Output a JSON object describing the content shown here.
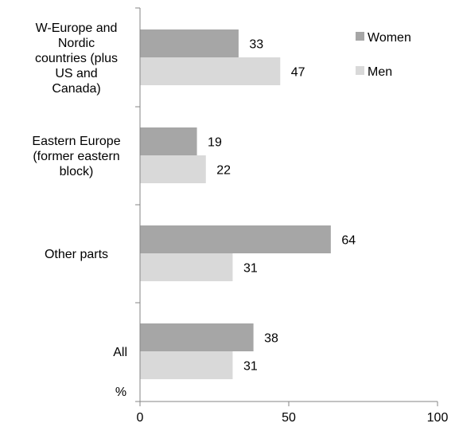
{
  "chart_data": {
    "type": "bar",
    "orientation": "horizontal",
    "categories": [
      [
        "W-Europe and",
        "Nordic",
        "countries (plus",
        "US and",
        "Canada)"
      ],
      [
        "Eastern Europe",
        "(former eastern",
        "block)"
      ],
      [
        "Other parts"
      ],
      [
        "All"
      ]
    ],
    "series": [
      {
        "name": "Women",
        "values": [
          33,
          19,
          64,
          38
        ],
        "color": "#a6a6a6"
      },
      {
        "name": "Men",
        "values": [
          47,
          22,
          31,
          31
        ],
        "color": "#d9d9d9"
      }
    ],
    "ylabel": "%",
    "xlim": [
      0,
      100
    ],
    "xticks": [
      "0",
      "50",
      "100"
    ],
    "grid": false,
    "legend_position": "top-right",
    "data_labels": true
  }
}
